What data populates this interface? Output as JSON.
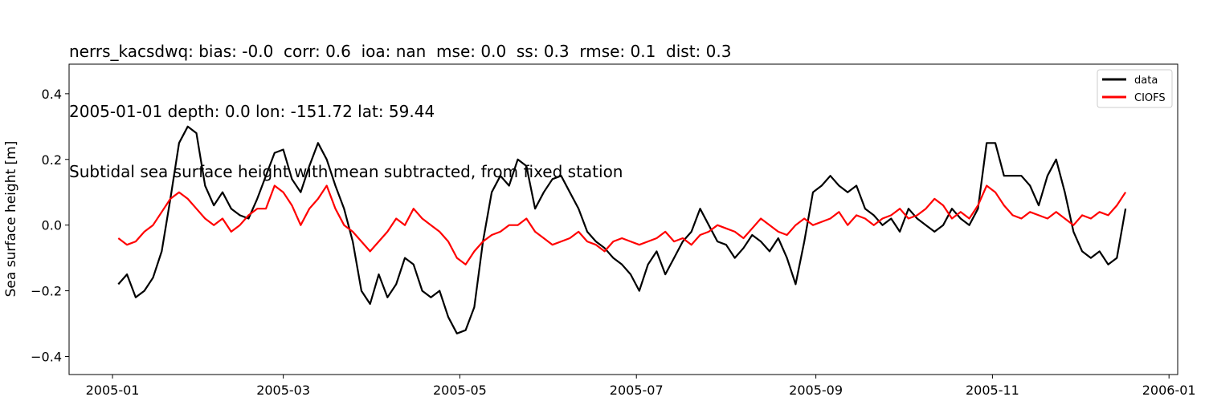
{
  "chart_data": {
    "type": "line",
    "title_lines": [
      "nerrs_kacsdwq: bias: -0.0  corr: 0.6  ioa: nan  mse: 0.0  ss: 0.3  rmse: 0.1  dist: 0.3",
      "2005-01-01 depth: 0.0 lon: -151.72 lat: 59.44",
      "Subtidal sea surface height with mean subtracted, from fixed station"
    ],
    "xlabel": "",
    "ylabel": "Sea surface height [m]",
    "xlim": [
      "2004-12-17",
      "2006-01-04"
    ],
    "ylim": [
      -0.455,
      0.49
    ],
    "x_ticks": [
      "2005-01",
      "2005-03",
      "2005-05",
      "2005-07",
      "2005-09",
      "2005-11",
      "2006-01"
    ],
    "y_ticks": [
      -0.4,
      -0.2,
      0.0,
      0.2,
      0.4
    ],
    "y_tick_labels": [
      "−0.4",
      "−0.2",
      "0.0",
      "0.2",
      "0.4"
    ],
    "grid": false,
    "legend_position": "top-right",
    "series": [
      {
        "name": "data",
        "color": "#000000",
        "x": [
          "2005-01-03",
          "2005-01-06",
          "2005-01-09",
          "2005-01-12",
          "2005-01-15",
          "2005-01-18",
          "2005-01-21",
          "2005-01-24",
          "2005-01-27",
          "2005-01-30",
          "2005-02-02",
          "2005-02-05",
          "2005-02-08",
          "2005-02-11",
          "2005-02-14",
          "2005-02-17",
          "2005-02-20",
          "2005-02-23",
          "2005-02-26",
          "2005-03-01",
          "2005-03-04",
          "2005-03-07",
          "2005-03-10",
          "2005-03-13",
          "2005-03-16",
          "2005-03-19",
          "2005-03-22",
          "2005-03-25",
          "2005-03-28",
          "2005-03-31",
          "2005-04-03",
          "2005-04-06",
          "2005-04-09",
          "2005-04-12",
          "2005-04-15",
          "2005-04-18",
          "2005-04-21",
          "2005-04-24",
          "2005-04-27",
          "2005-04-30",
          "2005-05-03",
          "2005-05-06",
          "2005-05-09",
          "2005-05-12",
          "2005-05-15",
          "2005-05-18",
          "2005-05-21",
          "2005-05-24",
          "2005-05-27",
          "2005-05-30",
          "2005-06-02",
          "2005-06-05",
          "2005-06-08",
          "2005-06-11",
          "2005-06-14",
          "2005-06-17",
          "2005-06-20",
          "2005-06-23",
          "2005-06-26",
          "2005-06-29",
          "2005-07-02",
          "2005-07-05",
          "2005-07-08",
          "2005-07-11",
          "2005-07-14",
          "2005-07-17",
          "2005-07-20",
          "2005-07-23",
          "2005-07-26",
          "2005-07-29",
          "2005-08-01",
          "2005-08-04",
          "2005-08-07",
          "2005-08-10",
          "2005-08-13",
          "2005-08-16",
          "2005-08-19",
          "2005-08-22",
          "2005-08-25",
          "2005-08-28",
          "2005-08-31",
          "2005-09-03",
          "2005-09-06",
          "2005-09-09",
          "2005-09-12",
          "2005-09-15",
          "2005-09-18",
          "2005-09-21",
          "2005-09-24",
          "2005-09-27",
          "2005-09-30",
          "2005-10-03",
          "2005-10-06",
          "2005-10-09",
          "2005-10-12",
          "2005-10-15",
          "2005-10-18",
          "2005-10-21",
          "2005-10-24",
          "2005-10-27",
          "2005-10-30",
          "2005-11-02",
          "2005-11-05",
          "2005-11-08",
          "2005-11-11",
          "2005-11-14",
          "2005-11-17",
          "2005-11-20",
          "2005-11-23",
          "2005-11-26",
          "2005-11-29",
          "2005-12-02",
          "2005-12-05",
          "2005-12-08",
          "2005-12-11",
          "2005-12-14",
          "2005-12-17"
        ],
        "values": [
          -0.18,
          -0.15,
          -0.22,
          -0.2,
          -0.16,
          -0.08,
          0.08,
          0.25,
          0.3,
          0.28,
          0.12,
          0.06,
          0.1,
          0.05,
          0.03,
          0.02,
          0.08,
          0.15,
          0.22,
          0.23,
          0.14,
          0.1,
          0.18,
          0.25,
          0.2,
          0.12,
          0.05,
          -0.05,
          -0.2,
          -0.24,
          -0.15,
          -0.22,
          -0.18,
          -0.1,
          -0.12,
          -0.2,
          -0.22,
          -0.2,
          -0.28,
          -0.33,
          -0.32,
          -0.25,
          -0.05,
          0.1,
          0.15,
          0.12,
          0.2,
          0.18,
          0.05,
          0.1,
          0.14,
          0.15,
          0.1,
          0.05,
          -0.02,
          -0.05,
          -0.07,
          -0.1,
          -0.12,
          -0.15,
          -0.2,
          -0.12,
          -0.08,
          -0.15,
          -0.1,
          -0.05,
          -0.02,
          0.05,
          0.0,
          -0.05,
          -0.06,
          -0.1,
          -0.07,
          -0.03,
          -0.05,
          -0.08,
          -0.04,
          -0.1,
          -0.18,
          -0.05,
          0.1,
          0.12,
          0.15,
          0.12,
          0.1,
          0.12,
          0.05,
          0.03,
          0.0,
          0.02,
          -0.02,
          0.05,
          0.02,
          0.0,
          -0.02,
          0.0,
          0.05,
          0.02,
          0.0,
          0.05,
          0.25,
          0.25,
          0.15,
          0.15,
          0.15,
          0.12,
          0.06,
          0.15,
          0.2,
          0.1,
          -0.02,
          -0.08,
          -0.1,
          -0.08,
          -0.12,
          -0.1,
          0.05
        ]
      },
      {
        "name": "CIOFS",
        "color": "#ff0000",
        "x": [
          "2005-01-03",
          "2005-01-06",
          "2005-01-09",
          "2005-01-12",
          "2005-01-15",
          "2005-01-18",
          "2005-01-21",
          "2005-01-24",
          "2005-01-27",
          "2005-01-30",
          "2005-02-02",
          "2005-02-05",
          "2005-02-08",
          "2005-02-11",
          "2005-02-14",
          "2005-02-17",
          "2005-02-20",
          "2005-02-23",
          "2005-02-26",
          "2005-03-01",
          "2005-03-04",
          "2005-03-07",
          "2005-03-10",
          "2005-03-13",
          "2005-03-16",
          "2005-03-19",
          "2005-03-22",
          "2005-03-25",
          "2005-03-28",
          "2005-03-31",
          "2005-04-03",
          "2005-04-06",
          "2005-04-09",
          "2005-04-12",
          "2005-04-15",
          "2005-04-18",
          "2005-04-21",
          "2005-04-24",
          "2005-04-27",
          "2005-04-30",
          "2005-05-03",
          "2005-05-06",
          "2005-05-09",
          "2005-05-12",
          "2005-05-15",
          "2005-05-18",
          "2005-05-21",
          "2005-05-24",
          "2005-05-27",
          "2005-05-30",
          "2005-06-02",
          "2005-06-05",
          "2005-06-08",
          "2005-06-11",
          "2005-06-14",
          "2005-06-17",
          "2005-06-20",
          "2005-06-23",
          "2005-06-26",
          "2005-06-29",
          "2005-07-02",
          "2005-07-05",
          "2005-07-08",
          "2005-07-11",
          "2005-07-14",
          "2005-07-17",
          "2005-07-20",
          "2005-07-23",
          "2005-07-26",
          "2005-07-29",
          "2005-08-01",
          "2005-08-04",
          "2005-08-07",
          "2005-08-10",
          "2005-08-13",
          "2005-08-16",
          "2005-08-19",
          "2005-08-22",
          "2005-08-25",
          "2005-08-28",
          "2005-08-31",
          "2005-09-03",
          "2005-09-06",
          "2005-09-09",
          "2005-09-12",
          "2005-09-15",
          "2005-09-18",
          "2005-09-21",
          "2005-09-24",
          "2005-09-27",
          "2005-09-30",
          "2005-10-03",
          "2005-10-06",
          "2005-10-09",
          "2005-10-12",
          "2005-10-15",
          "2005-10-18",
          "2005-10-21",
          "2005-10-24",
          "2005-10-27",
          "2005-10-30",
          "2005-11-02",
          "2005-11-05",
          "2005-11-08",
          "2005-11-11",
          "2005-11-14",
          "2005-11-17",
          "2005-11-20",
          "2005-11-23",
          "2005-11-26",
          "2005-11-29",
          "2005-12-02",
          "2005-12-05",
          "2005-12-08",
          "2005-12-11",
          "2005-12-14",
          "2005-12-17"
        ],
        "values": [
          -0.04,
          -0.06,
          -0.05,
          -0.02,
          0.0,
          0.04,
          0.08,
          0.1,
          0.08,
          0.05,
          0.02,
          0.0,
          0.02,
          -0.02,
          0.0,
          0.03,
          0.05,
          0.05,
          0.12,
          0.1,
          0.06,
          0.0,
          0.05,
          0.08,
          0.12,
          0.05,
          0.0,
          -0.02,
          -0.05,
          -0.08,
          -0.05,
          -0.02,
          0.02,
          0.0,
          0.05,
          0.02,
          0.0,
          -0.02,
          -0.05,
          -0.1,
          -0.12,
          -0.08,
          -0.05,
          -0.03,
          -0.02,
          0.0,
          0.0,
          0.02,
          -0.02,
          -0.04,
          -0.06,
          -0.05,
          -0.04,
          -0.02,
          -0.05,
          -0.06,
          -0.08,
          -0.05,
          -0.04,
          -0.05,
          -0.06,
          -0.05,
          -0.04,
          -0.02,
          -0.05,
          -0.04,
          -0.06,
          -0.03,
          -0.02,
          0.0,
          -0.01,
          -0.02,
          -0.04,
          -0.01,
          0.02,
          0.0,
          -0.02,
          -0.03,
          0.0,
          0.02,
          0.0,
          0.01,
          0.02,
          0.04,
          0.0,
          0.03,
          0.02,
          0.0,
          0.02,
          0.03,
          0.05,
          0.02,
          0.03,
          0.05,
          0.08,
          0.06,
          0.02,
          0.04,
          0.02,
          0.06,
          0.12,
          0.1,
          0.06,
          0.03,
          0.02,
          0.04,
          0.03,
          0.02,
          0.04,
          0.02,
          0.0,
          0.03,
          0.02,
          0.04,
          0.03,
          0.06,
          0.1
        ]
      }
    ]
  }
}
